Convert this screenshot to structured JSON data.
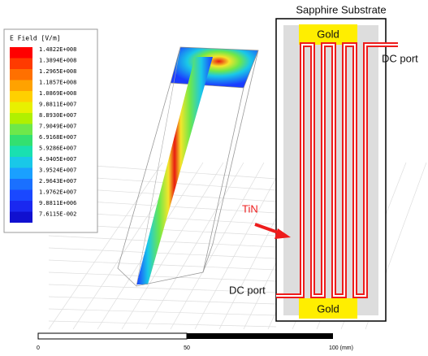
{
  "legend": {
    "title": "E Field [V/m]",
    "entries": [
      "1.4822E+008",
      "1.3894E+008",
      "1.2965E+008",
      "1.1857E+008",
      "1.0869E+008",
      "9.8811E+007",
      "8.8930E+007",
      "7.9049E+007",
      "6.9168E+007",
      "5.9286E+007",
      "4.9405E+007",
      "3.9524E+007",
      "2.9643E+007",
      "1.9762E+007",
      "9.8811E+006",
      "7.6115E-002"
    ]
  },
  "scale_bar": {
    "labels": [
      "0",
      "50",
      "100 (mm)"
    ]
  },
  "diagram": {
    "title": "Sapphire Substrate",
    "top_pad": "Gold",
    "bottom_pad": "Gold",
    "right_port": "DC port",
    "left_port": "DC port",
    "material": "TiN"
  }
}
